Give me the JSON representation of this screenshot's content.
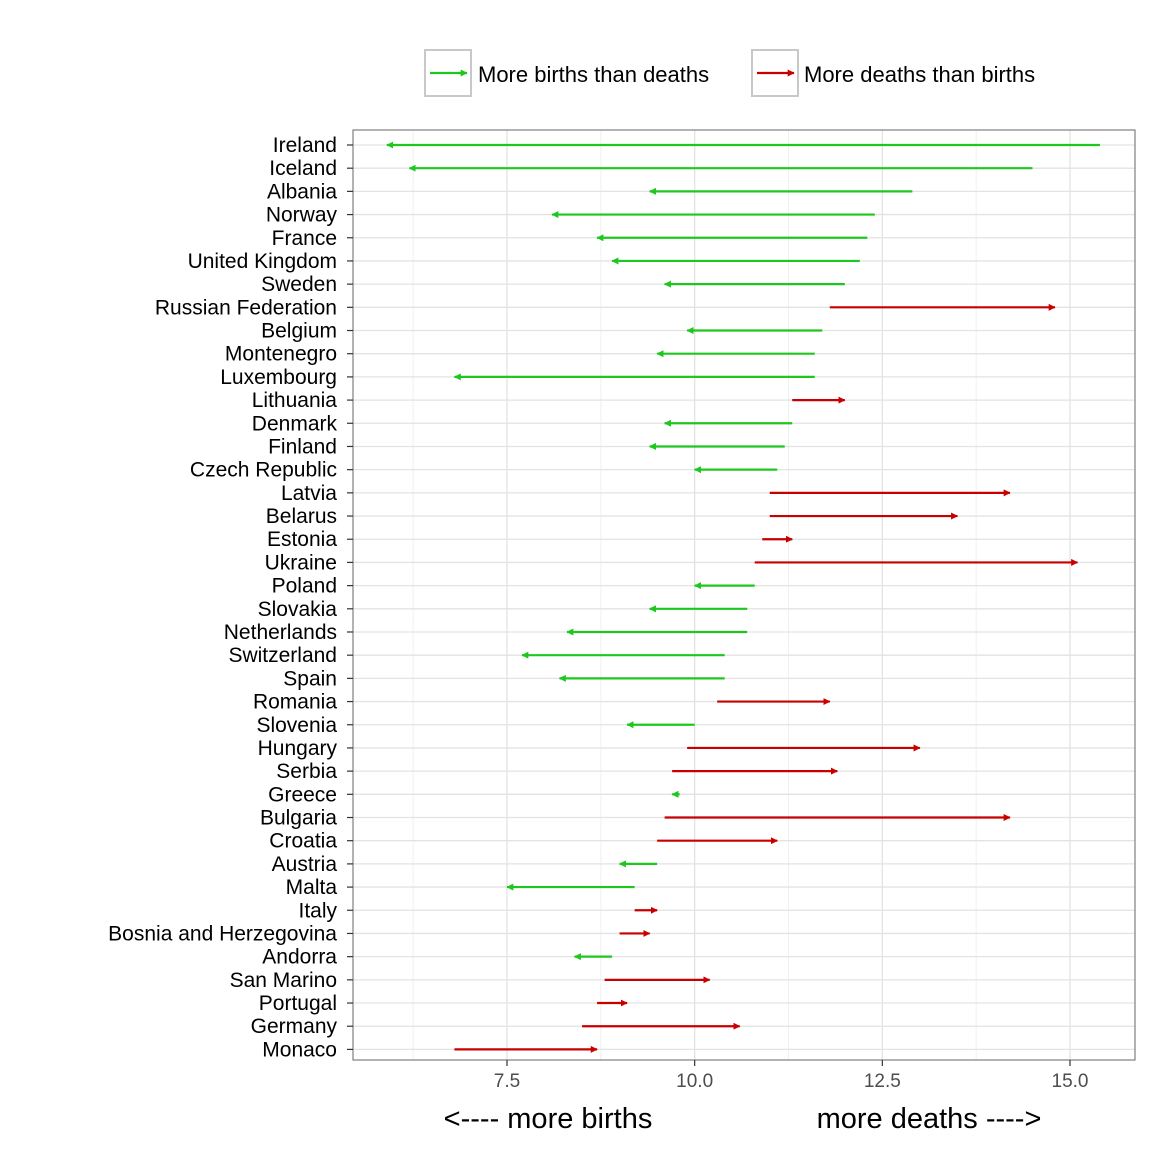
{
  "chart_data": {
    "type": "arrow-range",
    "legend": [
      {
        "label": "More births than deaths",
        "color": "#1ec71e"
      },
      {
        "label": "More deaths than births",
        "color": "#c80000"
      }
    ],
    "xlabel_left": "<---- more births",
    "xlabel_right": "more deaths ---->",
    "xlim": [
      5.8,
      16.3
    ],
    "xticks": [
      {
        "value": 7.5,
        "label": "7.5"
      },
      {
        "value": 10.0,
        "label": "10.0"
      },
      {
        "value": 12.5,
        "label": "12.5"
      },
      {
        "value": 15.0,
        "label": "15.0"
      }
    ],
    "grid": true,
    "legend_position": "top",
    "series": [
      {
        "country": "Ireland",
        "from": 15.4,
        "to": 5.9
      },
      {
        "country": "Iceland",
        "from": 14.5,
        "to": 6.2
      },
      {
        "country": "Albania",
        "from": 12.9,
        "to": 9.4
      },
      {
        "country": "Norway",
        "from": 12.4,
        "to": 8.1
      },
      {
        "country": "France",
        "from": 12.3,
        "to": 8.7
      },
      {
        "country": "United Kingdom",
        "from": 12.2,
        "to": 8.9
      },
      {
        "country": "Sweden",
        "from": 12.0,
        "to": 9.6
      },
      {
        "country": "Russian Federation",
        "from": 11.8,
        "to": 14.8
      },
      {
        "country": "Belgium",
        "from": 11.7,
        "to": 9.9
      },
      {
        "country": "Montenegro",
        "from": 11.6,
        "to": 9.5
      },
      {
        "country": "Luxembourg",
        "from": 11.6,
        "to": 6.8
      },
      {
        "country": "Lithuania",
        "from": 11.3,
        "to": 12.0
      },
      {
        "country": "Denmark",
        "from": 11.3,
        "to": 9.6
      },
      {
        "country": "Finland",
        "from": 11.2,
        "to": 9.4
      },
      {
        "country": "Czech Republic",
        "from": 11.1,
        "to": 10.0
      },
      {
        "country": "Latvia",
        "from": 11.0,
        "to": 14.2
      },
      {
        "country": "Belarus",
        "from": 11.0,
        "to": 13.5
      },
      {
        "country": "Estonia",
        "from": 10.9,
        "to": 11.3
      },
      {
        "country": "Ukraine",
        "from": 10.8,
        "to": 15.1
      },
      {
        "country": "Poland",
        "from": 10.8,
        "to": 10.0
      },
      {
        "country": "Slovakia",
        "from": 10.7,
        "to": 9.4
      },
      {
        "country": "Netherlands",
        "from": 10.7,
        "to": 8.3
      },
      {
        "country": "Switzerland",
        "from": 10.4,
        "to": 7.7
      },
      {
        "country": "Spain",
        "from": 10.4,
        "to": 8.2
      },
      {
        "country": "Romania",
        "from": 10.3,
        "to": 11.8
      },
      {
        "country": "Slovenia",
        "from": 10.0,
        "to": 9.1
      },
      {
        "country": "Hungary",
        "from": 9.9,
        "to": 13.0
      },
      {
        "country": "Serbia",
        "from": 9.7,
        "to": 11.9
      },
      {
        "country": "Greece",
        "from": 9.8,
        "to": 9.7
      },
      {
        "country": "Bulgaria",
        "from": 9.6,
        "to": 14.2
      },
      {
        "country": "Croatia",
        "from": 9.5,
        "to": 11.1
      },
      {
        "country": "Austria",
        "from": 9.5,
        "to": 9.0
      },
      {
        "country": "Malta",
        "from": 9.2,
        "to": 7.5
      },
      {
        "country": "Italy",
        "from": 9.2,
        "to": 9.5
      },
      {
        "country": "Bosnia and Herzegovina",
        "from": 9.0,
        "to": 9.4
      },
      {
        "country": "Andorra",
        "from": 8.9,
        "to": 8.4
      },
      {
        "country": "San Marino",
        "from": 8.8,
        "to": 10.2
      },
      {
        "country": "Portugal",
        "from": 8.7,
        "to": 9.1
      },
      {
        "country": "Germany",
        "from": 8.5,
        "to": 10.6
      },
      {
        "country": "Monaco",
        "from": 6.8,
        "to": 8.7
      }
    ]
  }
}
